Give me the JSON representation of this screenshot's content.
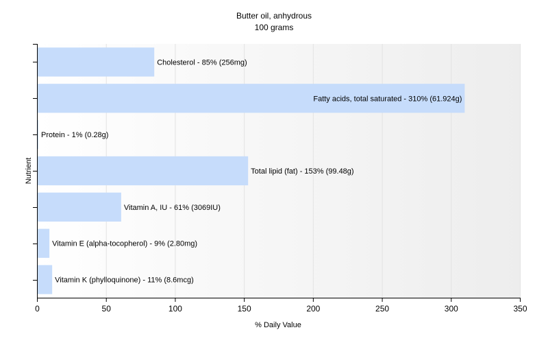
{
  "chart_data": {
    "type": "bar",
    "orientation": "horizontal",
    "title": "Butter oil, anhydrous",
    "subtitle": "100 grams",
    "xlabel": "% Daily Value",
    "ylabel": "Nutrient",
    "xlim": [
      0,
      350
    ],
    "xticks": [
      0,
      50,
      100,
      150,
      200,
      250,
      300,
      350
    ],
    "grid": true,
    "bar_color": "#c6dcfb",
    "categories": [
      "Cholesterol",
      "Fatty acids, total saturated",
      "Protein",
      "Total lipid (fat)",
      "Vitamin A, IU",
      "Vitamin E (alpha-tocopherol)",
      "Vitamin K (phylloquinone)"
    ],
    "values": [
      85,
      310,
      1,
      153,
      61,
      9,
      11
    ],
    "labels": [
      "Cholesterol - 85% (256mg)",
      "Fatty acids, total saturated - 310% (61.924g)",
      "Protein - 1% (0.28g)",
      "Total lipid (fat) - 153% (99.48g)",
      "Vitamin A, IU - 61% (3069IU)",
      "Vitamin E (alpha-tocopherol) - 9% (2.80mg)",
      "Vitamin K (phylloquinone) - 11% (8.6mcg)"
    ]
  }
}
